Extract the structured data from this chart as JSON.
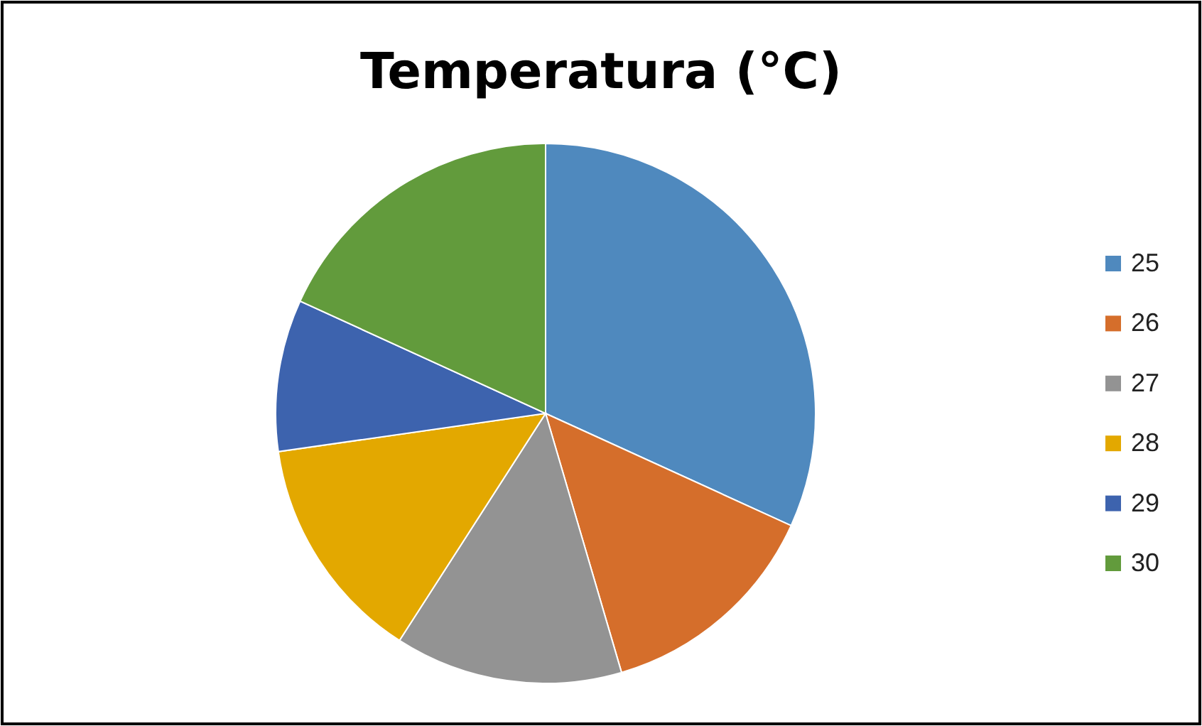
{
  "chart_data": {
    "type": "pie",
    "title": "Temperatura (°C)",
    "categories": [
      "25",
      "26",
      "27",
      "28",
      "29",
      "30"
    ],
    "values": [
      31.82,
      13.64,
      13.64,
      13.64,
      9.09,
      18.17
    ],
    "colors": [
      "#4f89be",
      "#d56e2b",
      "#939393",
      "#e3a800",
      "#3d63ae",
      "#629b3c"
    ],
    "legend": "right"
  }
}
